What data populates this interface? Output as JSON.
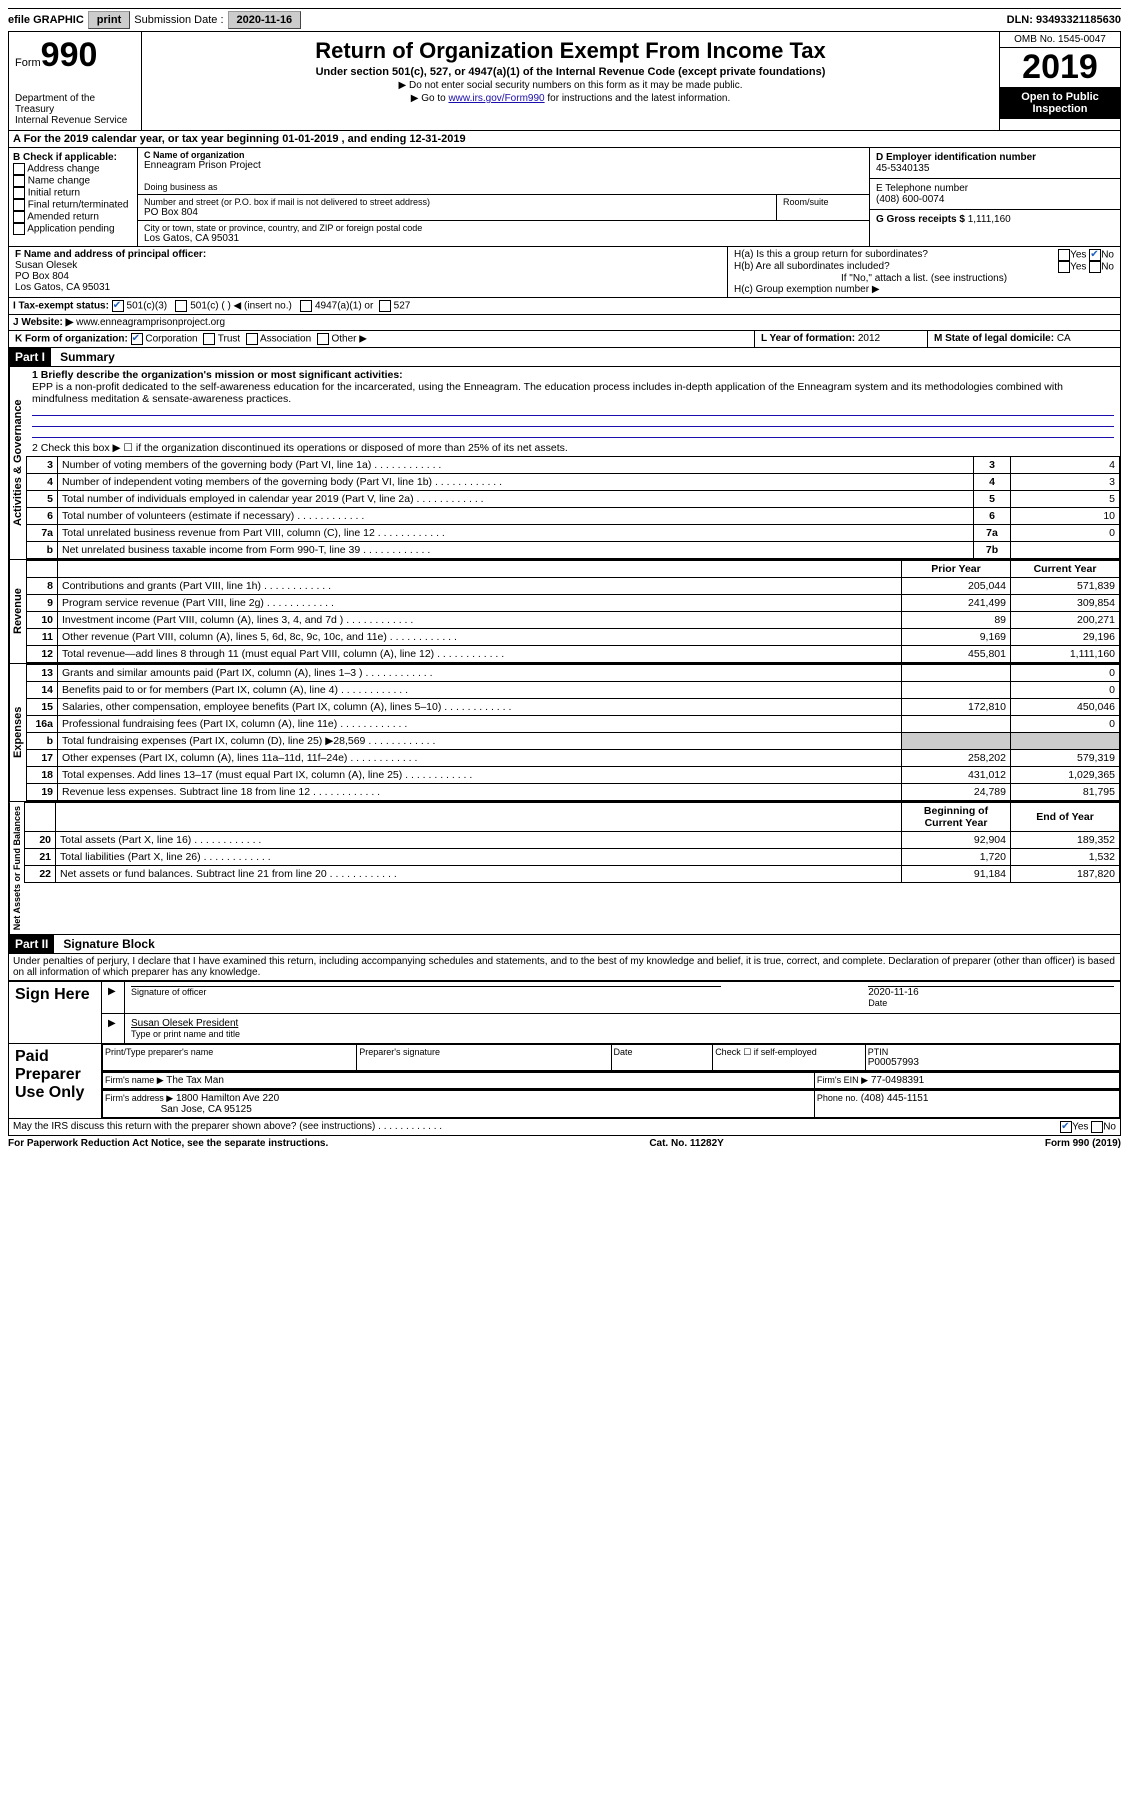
{
  "topbar": {
    "efile": "efile GRAPHIC",
    "print": "print",
    "submission_label": "Submission Date : ",
    "submission_date": "2020-11-16",
    "dln_label": "DLN: ",
    "dln": "93493321185630"
  },
  "header": {
    "form_word": "Form",
    "form_num": "990",
    "dept": "Department of the Treasury\nInternal Revenue Service",
    "title": "Return of Organization Exempt From Income Tax",
    "subtitle": "Under section 501(c), 527, or 4947(a)(1) of the Internal Revenue Code (except private foundations)",
    "hint1": "▶ Do not enter social security numbers on this form as it may be made public.",
    "hint2_pre": "▶ Go to ",
    "hint2_link": "www.irs.gov/Form990",
    "hint2_post": " for instructions and the latest information.",
    "omb": "OMB No. 1545-0047",
    "year": "2019",
    "inspect": "Open to Public Inspection"
  },
  "lineA": "A For the 2019 calendar year, or tax year beginning 01-01-2019   , and ending 12-31-2019",
  "boxB": {
    "label": "B Check if applicable:",
    "opts": [
      "Address change",
      "Name change",
      "Initial return",
      "Final return/terminated",
      "Amended return",
      "Application pending"
    ]
  },
  "boxC": {
    "name_label": "C Name of organization",
    "name": "Enneagram Prison Project",
    "dba_label": "Doing business as",
    "addr_label": "Number and street (or P.O. box if mail is not delivered to street address)",
    "room_label": "Room/suite",
    "addr": "PO Box 804",
    "city_label": "City or town, state or province, country, and ZIP or foreign postal code",
    "city": "Los Gatos, CA  95031"
  },
  "boxD": {
    "label": "D Employer identification number",
    "val": "45-5340135"
  },
  "boxE": {
    "label": "E Telephone number",
    "val": "(408) 600-0074"
  },
  "boxG": {
    "label": "G Gross receipts $ ",
    "val": "1,111,160"
  },
  "boxF": {
    "label": "F  Name and address of principal officer:",
    "name": "Susan Olesek",
    "addr1": "PO Box 804",
    "addr2": "Los Gatos, CA  95031"
  },
  "boxH": {
    "a": "H(a)  Is this a group return for subordinates?",
    "b": "H(b)  Are all subordinates included?",
    "bnote": "If \"No,\" attach a list. (see instructions)",
    "c": "H(c)  Group exemption number ▶"
  },
  "lineI": {
    "label": "I    Tax-exempt status:",
    "o1": "501(c)(3)",
    "o2": "501(c) (   ) ◀ (insert no.)",
    "o3": "4947(a)(1) or",
    "o4": "527"
  },
  "lineJ": {
    "label": "J   Website: ▶",
    "val": "www.enneagramprisonproject.org"
  },
  "lineK": {
    "label": "K Form of organization:",
    "opts": [
      "Corporation",
      "Trust",
      "Association",
      "Other ▶"
    ]
  },
  "lineL": {
    "label": "L Year of formation: ",
    "val": "2012"
  },
  "lineM": {
    "label": "M State of legal domicile: ",
    "val": "CA"
  },
  "part1": {
    "tag": "Part I",
    "title": "Summary",
    "l1_label": "1  Briefly describe the organization's mission or most significant activities:",
    "l1_text": "EPP is a non-profit dedicated to the self-awareness education for the incarcerated, using the Enneagram. The education process includes in-depth application of the Enneagram system and its methodologies combined with mindfulness meditation & sensate-awareness practices.",
    "l2": "2   Check this box ▶ ☐  if the organization discontinued its operations or disposed of more than 25% of its net assets.",
    "rows_gov": [
      {
        "n": "3",
        "t": "Number of voting members of the governing body (Part VI, line 1a)",
        "box": "3",
        "v": "4"
      },
      {
        "n": "4",
        "t": "Number of independent voting members of the governing body (Part VI, line 1b)",
        "box": "4",
        "v": "3"
      },
      {
        "n": "5",
        "t": "Total number of individuals employed in calendar year 2019 (Part V, line 2a)",
        "box": "5",
        "v": "5"
      },
      {
        "n": "6",
        "t": "Total number of volunteers (estimate if necessary)",
        "box": "6",
        "v": "10"
      },
      {
        "n": "7a",
        "t": "Total unrelated business revenue from Part VIII, column (C), line 12",
        "box": "7a",
        "v": "0"
      },
      {
        "n": "b",
        "t": "Net unrelated business taxable income from Form 990-T, line 39",
        "box": "7b",
        "v": ""
      }
    ],
    "col_prior": "Prior Year",
    "col_curr": "Current Year",
    "rows_rev": [
      {
        "n": "8",
        "t": "Contributions and grants (Part VIII, line 1h)",
        "p": "205,044",
        "c": "571,839"
      },
      {
        "n": "9",
        "t": "Program service revenue (Part VIII, line 2g)",
        "p": "241,499",
        "c": "309,854"
      },
      {
        "n": "10",
        "t": "Investment income (Part VIII, column (A), lines 3, 4, and 7d )",
        "p": "89",
        "c": "200,271"
      },
      {
        "n": "11",
        "t": "Other revenue (Part VIII, column (A), lines 5, 6d, 8c, 9c, 10c, and 11e)",
        "p": "9,169",
        "c": "29,196"
      },
      {
        "n": "12",
        "t": "Total revenue—add lines 8 through 11 (must equal Part VIII, column (A), line 12)",
        "p": "455,801",
        "c": "1,111,160"
      }
    ],
    "rows_exp": [
      {
        "n": "13",
        "t": "Grants and similar amounts paid (Part IX, column (A), lines 1–3 )",
        "p": "",
        "c": "0"
      },
      {
        "n": "14",
        "t": "Benefits paid to or for members (Part IX, column (A), line 4)",
        "p": "",
        "c": "0"
      },
      {
        "n": "15",
        "t": "Salaries, other compensation, employee benefits (Part IX, column (A), lines 5–10)",
        "p": "172,810",
        "c": "450,046"
      },
      {
        "n": "16a",
        "t": "Professional fundraising fees (Part IX, column (A), line 11e)",
        "p": "",
        "c": "0"
      },
      {
        "n": "b",
        "t": "Total fundraising expenses (Part IX, column (D), line 25) ▶28,569",
        "p": "GRAY",
        "c": "GRAY"
      },
      {
        "n": "17",
        "t": "Other expenses (Part IX, column (A), lines 11a–11d, 11f–24e)",
        "p": "258,202",
        "c": "579,319"
      },
      {
        "n": "18",
        "t": "Total expenses. Add lines 13–17 (must equal Part IX, column (A), line 25)",
        "p": "431,012",
        "c": "1,029,365"
      },
      {
        "n": "19",
        "t": "Revenue less expenses. Subtract line 18 from line 12",
        "p": "24,789",
        "c": "81,795"
      }
    ],
    "col_begin": "Beginning of Current Year",
    "col_end": "End of Year",
    "rows_net": [
      {
        "n": "20",
        "t": "Total assets (Part X, line 16)",
        "p": "92,904",
        "c": "189,352"
      },
      {
        "n": "21",
        "t": "Total liabilities (Part X, line 26)",
        "p": "1,720",
        "c": "1,532"
      },
      {
        "n": "22",
        "t": "Net assets or fund balances. Subtract line 21 from line 20",
        "p": "91,184",
        "c": "187,820"
      }
    ],
    "vlabels": {
      "gov": "Activities & Governance",
      "rev": "Revenue",
      "exp": "Expenses",
      "net": "Net Assets or Fund Balances"
    }
  },
  "part2": {
    "tag": "Part II",
    "title": "Signature Block",
    "decl": "Under penalties of perjury, I declare that I have examined this return, including accompanying schedules and statements, and to the best of my knowledge and belief, it is true, correct, and complete. Declaration of preparer (other than officer) is based on all information of which preparer has any knowledge.",
    "sign_here": "Sign Here",
    "sig_officer": "Signature of officer",
    "sig_date": "Date",
    "sig_date_val": "2020-11-16",
    "officer_name": "Susan Olesek  President",
    "type_name": "Type or print name and title",
    "paid": "Paid Preparer Use Only",
    "prep_name_label": "Print/Type preparer's name",
    "prep_sig_label": "Preparer's signature",
    "date_label": "Date",
    "check_self": "Check ☐ if self-employed",
    "ptin_label": "PTIN",
    "ptin": "P00057993",
    "firm_name_label": "Firm's name   ▶",
    "firm_name": "The Tax Man",
    "firm_ein_label": "Firm's EIN ▶",
    "firm_ein": "77-0498391",
    "firm_addr_label": "Firm's address ▶",
    "firm_addr1": "1800 Hamilton Ave 220",
    "firm_addr2": "San Jose, CA  95125",
    "phone_label": "Phone no.",
    "phone": "(408) 445-1151",
    "discuss": "May the IRS discuss this return with the preparer shown above? (see instructions)"
  },
  "footer": {
    "pra": "For Paperwork Reduction Act Notice, see the separate instructions.",
    "cat": "Cat. No. 11282Y",
    "formyear": "Form 990 (2019)"
  }
}
